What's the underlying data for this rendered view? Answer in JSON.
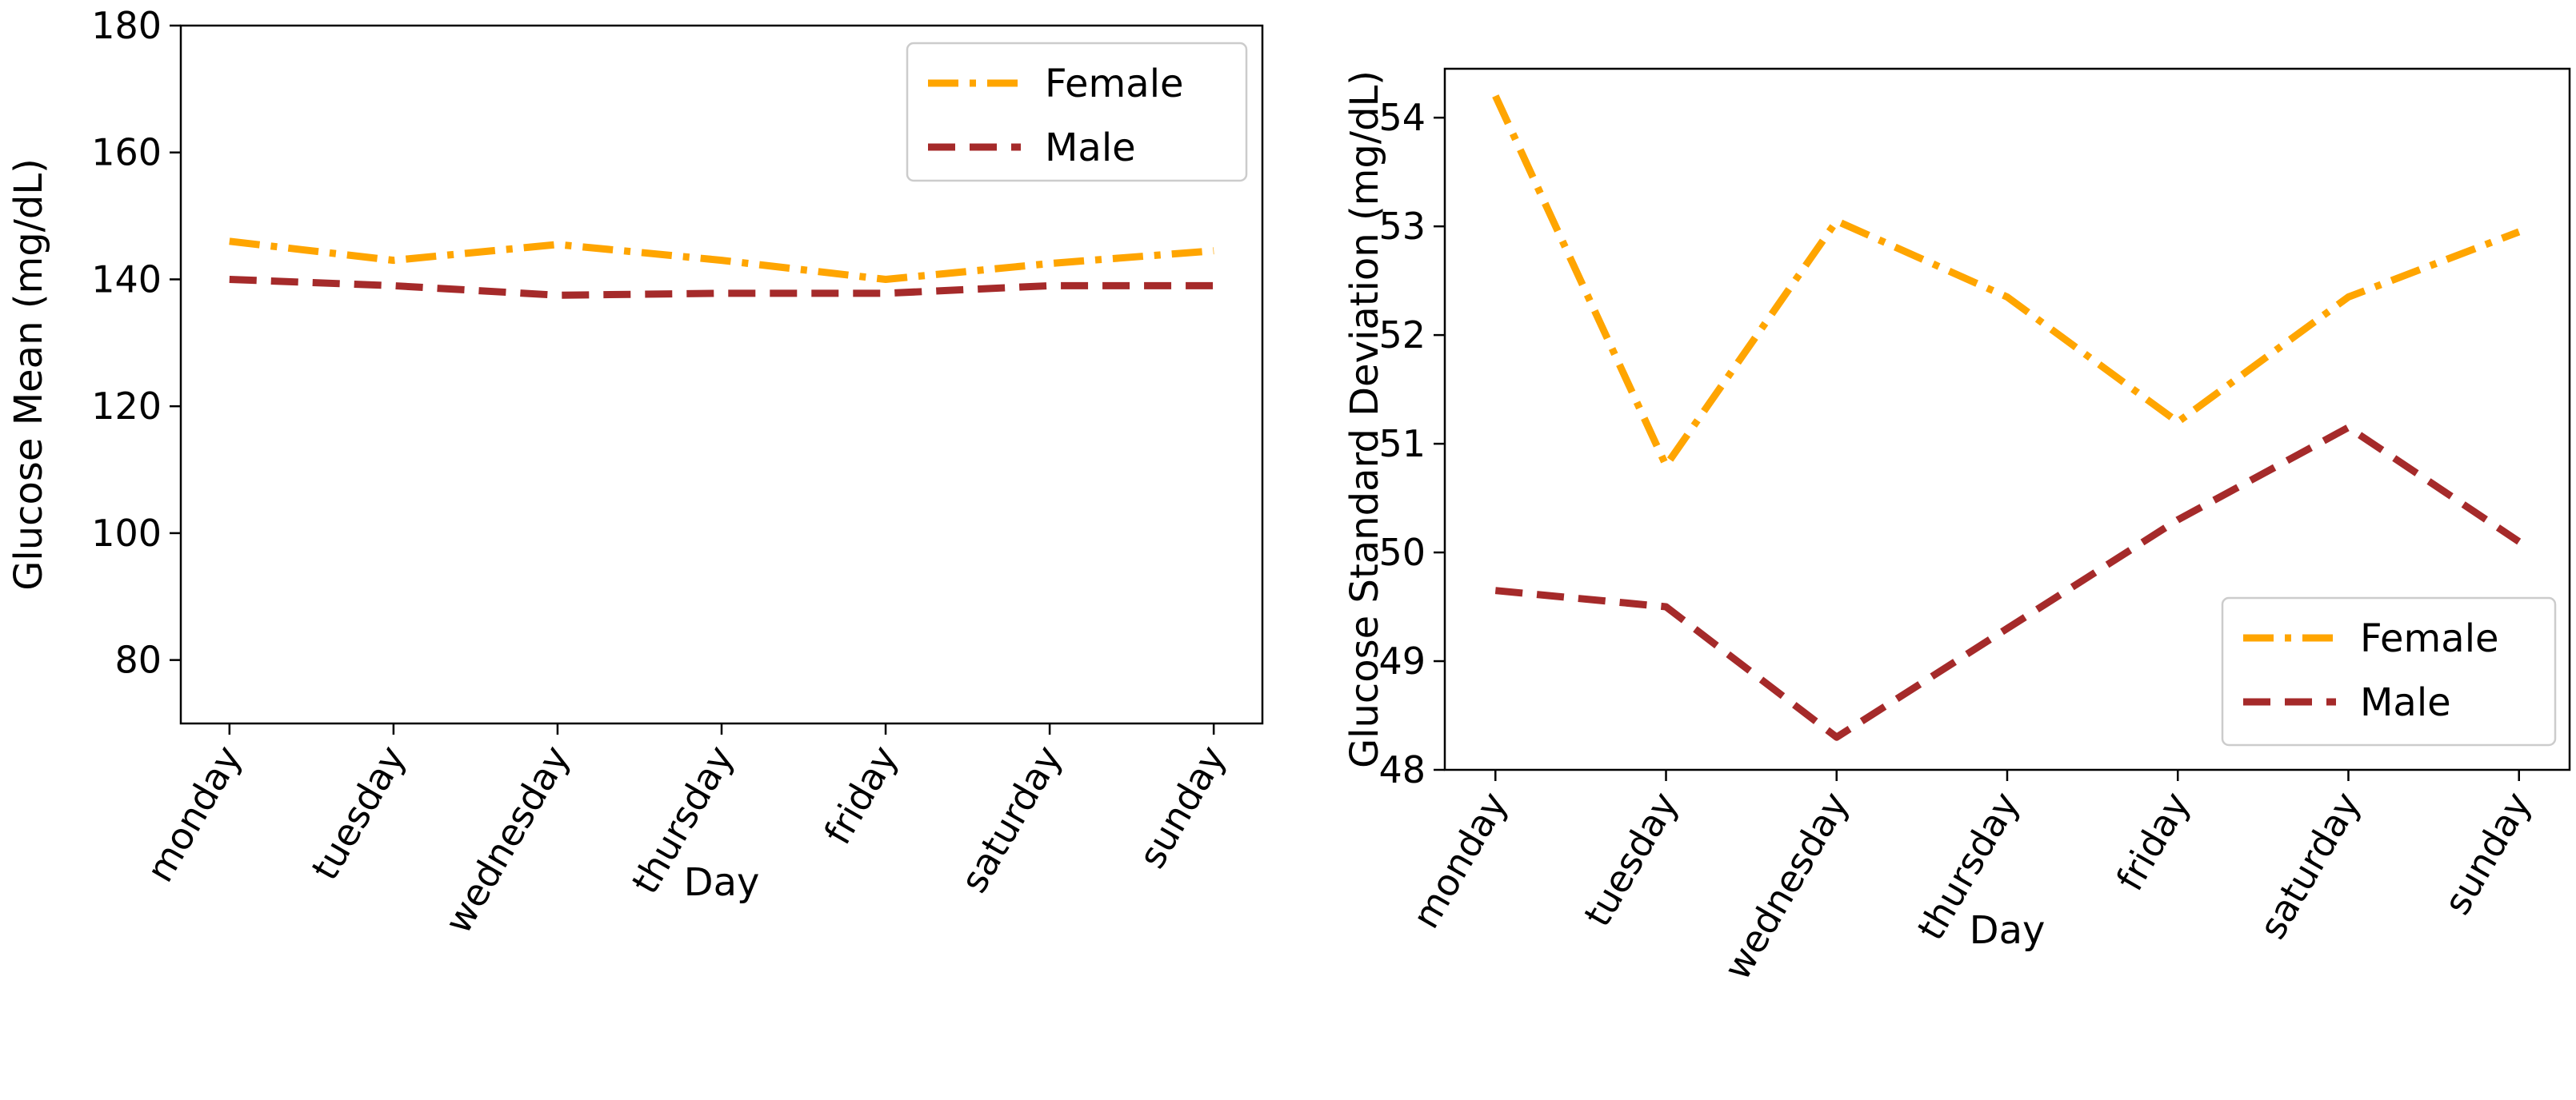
{
  "chart_data": [
    {
      "type": "line",
      "xlabel": "Day",
      "ylabel": "Glucose Mean (mg/dL)",
      "categories": [
        "monday",
        "tuesday",
        "wednesday",
        "thursday",
        "friday",
        "saturday",
        "sunday"
      ],
      "ylim": [
        70,
        180
      ],
      "yticks": [
        "80",
        "100",
        "120",
        "140",
        "160",
        "180"
      ],
      "legend_position": "upper right",
      "series": [
        {
          "name": "Female",
          "color": "#ffa500",
          "dash": "dash-dot",
          "values": [
            146.0,
            143.0,
            145.5,
            143.0,
            140.0,
            142.5,
            144.5
          ]
        },
        {
          "name": "Male",
          "color": "#a52a2a",
          "dash": "dashed",
          "values": [
            140.0,
            139.0,
            137.5,
            137.8,
            137.8,
            139.0,
            139.0
          ]
        }
      ]
    },
    {
      "type": "line",
      "xlabel": "Day",
      "ylabel": "Glucose Standard Deviation (mg/dL)",
      "categories": [
        "monday",
        "tuesday",
        "wednesday",
        "thursday",
        "friday",
        "saturday",
        "sunday"
      ],
      "ylim": [
        48,
        54.45
      ],
      "yticks": [
        "48",
        "49",
        "50",
        "51",
        "52",
        "53",
        "54"
      ],
      "legend_position": "lower right",
      "series": [
        {
          "name": "Female",
          "color": "#ffa500",
          "dash": "dash-dot",
          "values": [
            54.2,
            50.8,
            53.05,
            52.35,
            51.2,
            52.35,
            52.95
          ]
        },
        {
          "name": "Male",
          "color": "#a52a2a",
          "dash": "dashed",
          "values": [
            49.65,
            49.5,
            48.3,
            49.3,
            50.3,
            51.15,
            50.1
          ]
        }
      ]
    }
  ]
}
